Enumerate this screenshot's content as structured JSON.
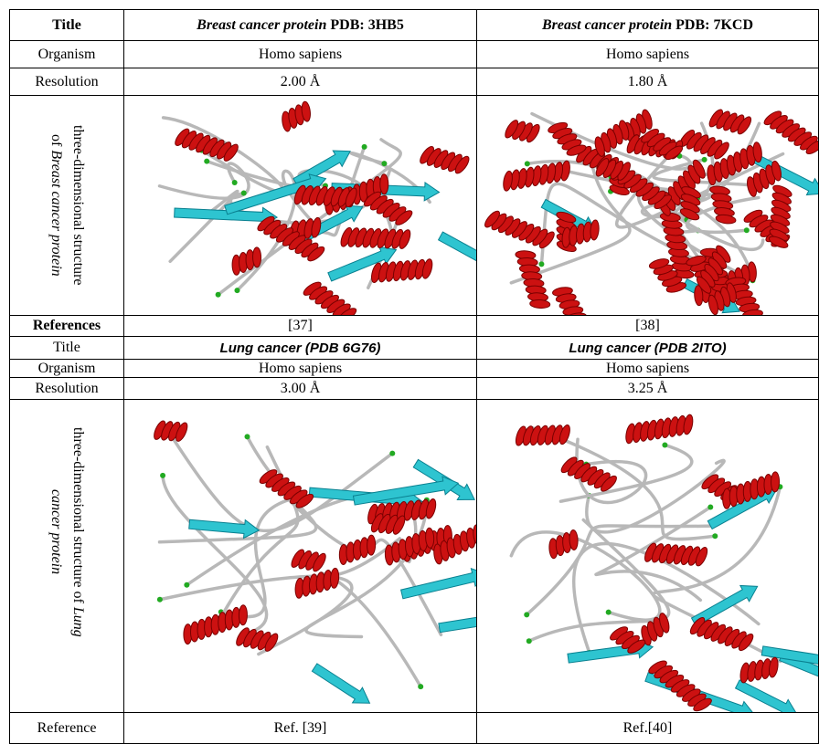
{
  "table": {
    "rows": [
      [
        "Title",
        {
          "em": "Breast cancer protein",
          "rest": "PDB: 3HB5"
        },
        {
          "em": "Breast cancer protein",
          "rest": "PDB: 7KCD"
        }
      ],
      [
        "Organism",
        "Homo sapiens",
        "Homo sapiens"
      ],
      [
        "Resolution",
        "2.00 Å",
        "1.80 Å"
      ],
      [
        {
          "line1": "three-dimensional structure",
          "line2": "of",
          "line2_em": "Breast cancer protein"
        }
      ],
      [
        "References",
        "[37]",
        "[38]"
      ],
      [
        "Title",
        "Lung cancer (PDB 6G76)",
        "Lung cancer (PDB 2ITO)"
      ],
      [
        "Organism",
        "Homo sapiens",
        "Homo sapiens"
      ],
      [
        "Resolution",
        "3.00 Å",
        "3.25 Å"
      ],
      [
        {
          "line1": "three-dimensional structure of",
          "line1_em": "Lung",
          "line2_em": "cancer protein"
        }
      ],
      [
        "Reference",
        "Ref. [39]",
        "Ref.[40]"
      ]
    ]
  }
}
